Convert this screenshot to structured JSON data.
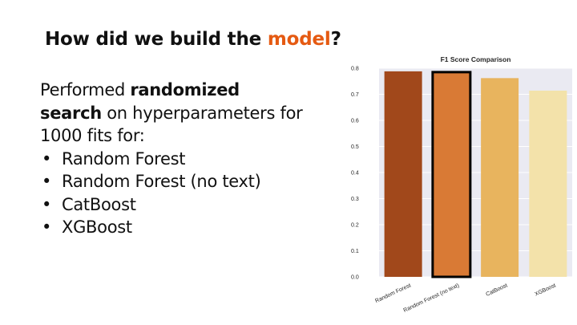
{
  "slide": {
    "title_part1": "How did we build the ",
    "title_accent": "model",
    "title_part2": "?",
    "intro_1": "Performed ",
    "intro_bold": "randomized search",
    "intro_2": " on hyperparameters for 1000 fits for:",
    "bullet_char": "•",
    "bullets": [
      "Random Forest",
      "Random Forest (no text)",
      "CatBoost",
      "XGBoost"
    ]
  },
  "chart_data": {
    "type": "bar",
    "title": "F1 Score Comparison",
    "xlabel": "",
    "ylabel": "",
    "categories": [
      "Random Forest",
      "Random Forest (no text)",
      "CatBoost",
      "XGBoost"
    ],
    "values": [
      0.788,
      0.785,
      0.762,
      0.714
    ],
    "colors": [
      "#a1481b",
      "#d97a35",
      "#e8b45e",
      "#f3e2aa"
    ],
    "highlighted": "Random Forest (no text)",
    "ylim": [
      0.0,
      0.8
    ],
    "yticks": [
      "0.0",
      "0.1",
      "0.2",
      "0.3",
      "0.4",
      "0.5",
      "0.6",
      "0.7",
      "0.8"
    ],
    "grid": true,
    "plot_background": "#eaeaf2",
    "accent_color": "#e55a12"
  }
}
